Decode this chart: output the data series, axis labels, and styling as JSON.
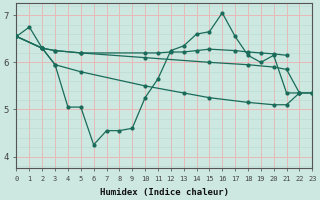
{
  "xlabel": "Humidex (Indice chaleur)",
  "bg_color": "#cce8e0",
  "line_color": "#1a6b5a",
  "grid_major_color": "#f0c8c8",
  "grid_minor_color": "#ddeee8",
  "xlim": [
    0,
    23
  ],
  "ylim": [
    3.75,
    7.25
  ],
  "yticks": [
    4,
    5,
    6,
    7
  ],
  "xticks": [
    0,
    1,
    2,
    3,
    4,
    5,
    6,
    7,
    8,
    9,
    10,
    11,
    12,
    13,
    14,
    15,
    16,
    17,
    18,
    19,
    20,
    21,
    22,
    23
  ],
  "lines": [
    {
      "x": [
        0,
        1,
        2,
        3,
        4,
        5,
        6,
        7,
        8,
        9,
        10,
        11,
        12,
        13,
        14,
        15,
        16,
        17,
        18,
        19,
        20,
        21,
        22,
        23
      ],
      "y": [
        6.55,
        6.75,
        6.3,
        5.95,
        5.05,
        5.05,
        4.25,
        4.55,
        4.55,
        4.6,
        5.25,
        5.65,
        6.25,
        6.35,
        6.6,
        6.65,
        7.05,
        6.55,
        6.15,
        6.0,
        6.15,
        5.35,
        5.35,
        null
      ]
    },
    {
      "x": [
        0,
        2,
        3,
        5,
        10,
        11,
        12,
        13,
        14,
        15,
        17,
        18,
        19,
        20,
        21
      ],
      "y": [
        6.55,
        6.3,
        6.25,
        6.2,
        6.2,
        6.2,
        6.22,
        6.22,
        6.25,
        6.28,
        6.25,
        6.22,
        6.2,
        6.18,
        6.15
      ]
    },
    {
      "x": [
        0,
        2,
        3,
        5,
        10,
        13,
        15,
        18,
        20,
        21,
        22,
        23
      ],
      "y": [
        6.55,
        6.3,
        5.95,
        5.8,
        5.5,
        5.35,
        5.25,
        5.15,
        5.1,
        5.1,
        5.35,
        5.35
      ]
    },
    {
      "x": [
        0,
        2,
        3,
        5,
        10,
        15,
        18,
        20,
        21,
        22,
        23
      ],
      "y": [
        6.55,
        6.3,
        6.25,
        6.2,
        6.1,
        6.0,
        5.95,
        5.9,
        5.85,
        5.35,
        5.35
      ]
    }
  ]
}
